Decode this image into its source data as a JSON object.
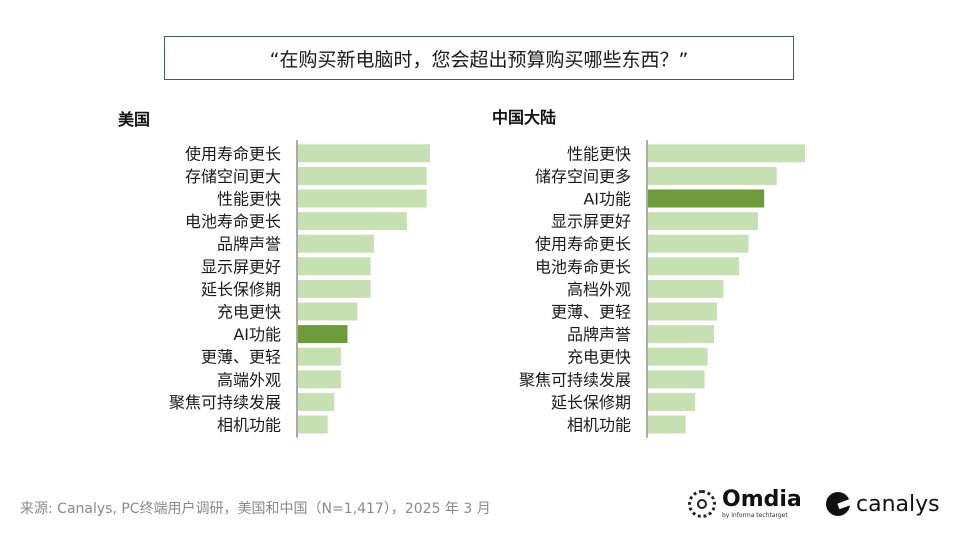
{
  "header": {
    "question": "“在购买新电脑时，您会超出预算购买哪些东西？”"
  },
  "colors": {
    "bar": "#c6e0b4",
    "highlight": "#6f9a3c",
    "axis": "#555555"
  },
  "chart_data": [
    {
      "type": "bar",
      "orientation": "horizontal",
      "title": "美国",
      "highlight": "AI功能",
      "categories": [
        "使用寿命更长",
        "存储空间更大",
        "性能更快",
        "电池寿命更长",
        "品牌声誉",
        "显示屏更好",
        "延长保修期",
        "充电更快",
        "AI功能",
        "更薄、更轻",
        "高端外观",
        "聚焦可持续发展",
        "相机功能"
      ],
      "values": [
        40,
        39,
        39,
        33,
        23,
        22,
        22,
        18,
        15,
        13,
        13,
        11,
        9
      ],
      "xlim": [
        0,
        50
      ],
      "xlabel": "",
      "ylabel": ""
    },
    {
      "type": "bar",
      "orientation": "horizontal",
      "title": "中国大陆",
      "highlight": "AI功能",
      "categories": [
        "性能更快",
        "储存空间更多",
        "AI功能",
        "显示屏更好",
        "使用寿命更长",
        "电池寿命更长",
        "高档外观",
        "更薄、更轻",
        "品牌声誉",
        "充电更快",
        "聚焦可持续发展",
        "延长保修期",
        "相机功能"
      ],
      "values": [
        50,
        41,
        37,
        35,
        32,
        29,
        24,
        22,
        21,
        19,
        18,
        15,
        12
      ],
      "xlim": [
        0,
        50
      ],
      "xlabel": "",
      "ylabel": ""
    }
  ],
  "footer": {
    "source": "来源: Canalys, PC终端用户调研，美国和中国（N=1,417），2025 年 3 月",
    "logo_omdia": "Omdia",
    "logo_omdia_sub": "by informa techtarget",
    "logo_canalys": "canalys"
  }
}
